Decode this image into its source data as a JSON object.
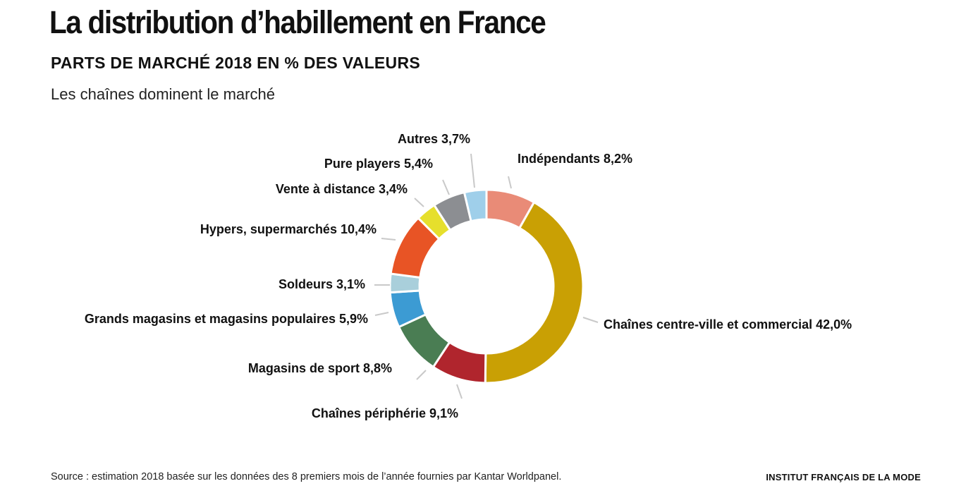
{
  "header": {
    "title": "La distribution d’habillement en France",
    "subtitle": "PARTS DE MARCHÉ 2018 EN % DES VALEURS",
    "tagline": "Les chaînes dominent le marché"
  },
  "footer": {
    "source": "Source : estimation 2018 basée sur les données des 8 premiers mois de l’année fournies par Kantar Worldpanel.",
    "brand": "INSTITUT FRANÇAIS DE LA MODE"
  },
  "chart_data": {
    "type": "pie",
    "donut": true,
    "slices": [
      {
        "label": "Indépendants",
        "value": 8.2,
        "display": "Indépendants 8,2%",
        "color": "#E98B77"
      },
      {
        "label": "Chaînes centre-ville et commercial",
        "value": 42.0,
        "display": "Chaînes centre-ville et commercial 42,0%",
        "color": "#C9A004"
      },
      {
        "label": "Chaînes périphérie",
        "value": 9.1,
        "display": "Chaînes périphérie 9,1%",
        "color": "#B0252D"
      },
      {
        "label": "Magasins de sport",
        "value": 8.8,
        "display": "Magasins de sport 8,8%",
        "color": "#4A7D53"
      },
      {
        "label": "Grands magasins et magasins populaires",
        "value": 5.9,
        "display": "Grands magasins et magasins populaires 5,9%",
        "color": "#3C9BD3"
      },
      {
        "label": "Soldeurs",
        "value": 3.1,
        "display": "Soldeurs 3,1%",
        "color": "#A9CFDB"
      },
      {
        "label": "Hypers, supermarchés",
        "value": 10.4,
        "display": "Hypers, supermarchés 10,4%",
        "color": "#E85425"
      },
      {
        "label": "Vente à distance",
        "value": 3.4,
        "display": "Vente à distance 3,4%",
        "color": "#E6DF2C"
      },
      {
        "label": "Pure players",
        "value": 5.4,
        "display": "Pure players 5,4%",
        "color": "#8C8E92"
      },
      {
        "label": "Autres",
        "value": 3.7,
        "display": "Autres 3,7%",
        "color": "#9FCFEA"
      }
    ]
  }
}
